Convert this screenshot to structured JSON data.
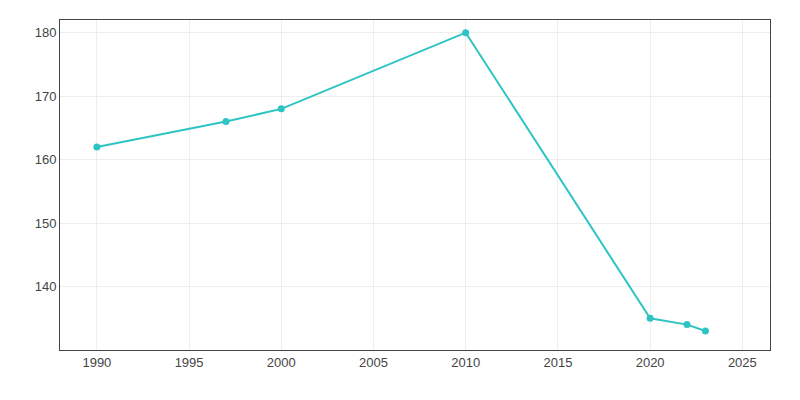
{
  "chart_data": {
    "type": "line",
    "x": [
      1990,
      1997,
      2000,
      2010,
      2020,
      2022,
      2023
    ],
    "values": [
      162,
      166,
      168,
      180,
      135,
      134,
      133
    ],
    "color": "#2EC4C4",
    "marker": "circle",
    "xlim": [
      1988,
      2026.5
    ],
    "ylim": [
      130,
      182
    ],
    "xticks": [
      1990,
      1995,
      2000,
      2005,
      2010,
      2015,
      2020,
      2025
    ],
    "yticks": [
      140,
      150,
      160,
      170,
      180
    ],
    "grid": true
  }
}
